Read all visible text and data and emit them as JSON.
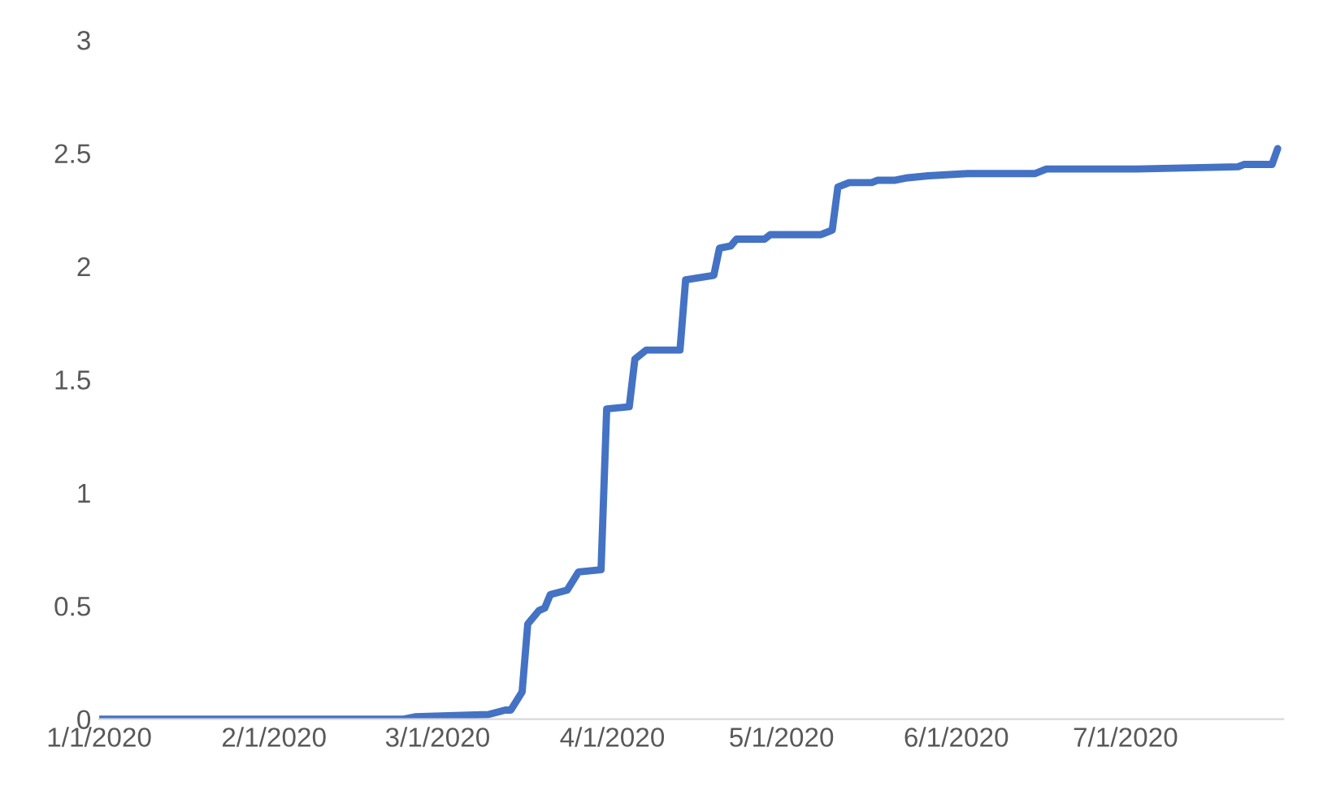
{
  "chart_data": {
    "type": "line",
    "x": [
      "2020-01-01",
      "2020-02-24",
      "2020-02-26",
      "2020-03-10",
      "2020-03-13",
      "2020-03-14",
      "2020-03-16",
      "2020-03-17",
      "2020-03-19",
      "2020-03-20",
      "2020-03-21",
      "2020-03-24",
      "2020-03-26",
      "2020-03-30",
      "2020-03-31",
      "2020-04-04",
      "2020-04-05",
      "2020-04-07",
      "2020-04-13",
      "2020-04-14",
      "2020-04-19",
      "2020-04-20",
      "2020-04-22",
      "2020-04-23",
      "2020-04-28",
      "2020-04-29",
      "2020-05-08",
      "2020-05-10",
      "2020-05-11",
      "2020-05-13",
      "2020-05-17",
      "2020-05-18",
      "2020-05-21",
      "2020-05-23",
      "2020-05-27",
      "2020-06-03",
      "2020-06-15",
      "2020-06-17",
      "2020-07-03",
      "2020-07-21",
      "2020-07-22",
      "2020-07-27",
      "2020-07-28"
    ],
    "series": [
      {
        "color": "#4472c4",
        "values": [
          0,
          0,
          0.01,
          0.02,
          0.04,
          0.04,
          0.12,
          0.42,
          0.48,
          0.49,
          0.55,
          0.57,
          0.65,
          0.66,
          1.37,
          1.38,
          1.59,
          1.63,
          1.63,
          1.94,
          1.96,
          2.08,
          2.09,
          2.12,
          2.12,
          2.14,
          2.14,
          2.16,
          2.35,
          2.37,
          2.37,
          2.38,
          2.38,
          2.39,
          2.4,
          2.41,
          2.41,
          2.43,
          2.43,
          2.44,
          2.45,
          2.45,
          2.52
        ]
      }
    ],
    "xlim": [
      "2020-01-01",
      "2020-07-29"
    ],
    "xticks": [
      {
        "value": "2020-01-01",
        "label": "1/1/2020"
      },
      {
        "value": "2020-02-01",
        "label": "2/1/2020"
      },
      {
        "value": "2020-03-01",
        "label": "3/1/2020"
      },
      {
        "value": "2020-04-01",
        "label": "4/1/2020"
      },
      {
        "value": "2020-05-01",
        "label": "5/1/2020"
      },
      {
        "value": "2020-06-01",
        "label": "6/1/2020"
      },
      {
        "value": "2020-07-01",
        "label": "7/1/2020"
      }
    ],
    "ylim": [
      0,
      3
    ],
    "yticks": [
      0,
      0.5,
      1,
      1.5,
      2,
      2.5,
      3
    ],
    "line_style": "solid"
  }
}
